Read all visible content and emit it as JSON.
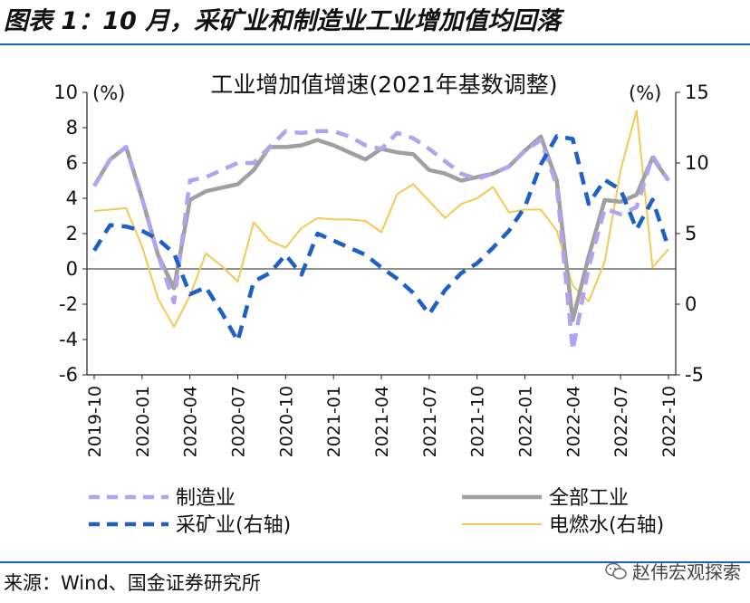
{
  "figure": {
    "title": "图表 1：10 月，采矿业和制造业工业增加值均回落",
    "source": "来源：Wind、国金证券研究所",
    "watermark": "赵伟宏观探索",
    "watermark_icon": "wechat-icon"
  },
  "chart_data": {
    "type": "line",
    "title": "工业增加值增速(2021年基数调整)",
    "left_unit": "(%)",
    "right_unit": "(%)",
    "xlabel": "",
    "x": [
      "2019-10",
      "2019-11",
      "2019-12",
      "2020-01",
      "2020-02",
      "2020-03",
      "2020-04",
      "2020-05",
      "2020-06",
      "2020-07",
      "2020-08",
      "2020-09",
      "2020-10",
      "2020-11",
      "2020-12",
      "2021-01",
      "2021-02",
      "2021-03",
      "2021-04",
      "2021-05",
      "2021-06",
      "2021-07",
      "2021-08",
      "2021-09",
      "2021-10",
      "2021-11",
      "2021-12",
      "2022-01",
      "2022-02",
      "2022-03",
      "2022-04",
      "2022-05",
      "2022-06",
      "2022-07",
      "2022-08",
      "2022-09",
      "2022-10"
    ],
    "x_tick_labels": [
      "2019-10",
      "2020-01",
      "2020-04",
      "2020-07",
      "2020-10",
      "2021-01",
      "2021-04",
      "2021-07",
      "2021-10",
      "2022-01",
      "2022-04",
      "2022-07",
      "2022-10"
    ],
    "left_axis": {
      "ylim": [
        -6,
        10
      ],
      "ticks": [
        10,
        8,
        6,
        4,
        2,
        0,
        -2,
        -4,
        -6
      ]
    },
    "right_axis": {
      "ylim": [
        -5,
        15
      ],
      "ticks": [
        15,
        10,
        5,
        0,
        -5
      ]
    },
    "grid": false,
    "series": [
      {
        "name": "制造业",
        "axis": "left",
        "color": "#b3a2f0",
        "style": "dashed-thick",
        "values": [
          4.7,
          6.2,
          6.9,
          4.0,
          0.8,
          -1.9,
          5.0,
          5.2,
          5.6,
          6.0,
          6.0,
          6.9,
          7.8,
          7.7,
          7.8,
          7.8,
          7.5,
          7.0,
          6.8,
          7.7,
          7.4,
          6.8,
          6.1,
          5.4,
          5.1,
          5.4,
          5.8,
          6.7,
          7.3,
          4.7,
          -4.6,
          0.1,
          3.4,
          3.1,
          3.5,
          6.4,
          5.0
        ]
      },
      {
        "name": "全部工业",
        "axis": "left",
        "color": "#a0a0a0",
        "style": "solid-thick",
        "values": [
          4.7,
          6.2,
          6.9,
          4.0,
          0.8,
          -1.1,
          3.9,
          4.4,
          4.6,
          4.8,
          5.6,
          6.9,
          6.9,
          7.0,
          7.3,
          7.0,
          6.6,
          6.2,
          6.8,
          6.6,
          6.5,
          5.6,
          5.4,
          5.0,
          5.2,
          5.4,
          5.8,
          6.7,
          7.5,
          5.0,
          -2.9,
          0.7,
          3.9,
          3.8,
          4.2,
          6.3,
          5.0
        ]
      },
      {
        "name": "采矿业(右轴)",
        "axis": "right",
        "color": "#1f5fc8",
        "style": "dashed-thick",
        "values": [
          3.8,
          5.6,
          5.5,
          5.2,
          4.6,
          3.6,
          0.7,
          1.2,
          -0.6,
          -2.6,
          1.6,
          2.2,
          3.5,
          2.1,
          5.0,
          4.5,
          4.0,
          3.5,
          2.6,
          1.8,
          0.8,
          -0.7,
          1.0,
          2.2,
          2.9,
          4.0,
          5.2,
          6.9,
          9.9,
          11.9,
          11.7,
          7.1,
          8.8,
          8.1,
          5.3,
          7.4,
          4.0
        ]
      },
      {
        "name": "电燃水(右轴)",
        "axis": "right",
        "color": "#f3c954",
        "style": "solid-thin",
        "values": [
          6.6,
          6.7,
          6.8,
          4.1,
          0.4,
          -1.6,
          0.6,
          3.6,
          2.7,
          1.6,
          5.8,
          4.5,
          4.0,
          5.4,
          6.1,
          6.0,
          6.0,
          5.9,
          5.1,
          7.8,
          8.5,
          7.3,
          6.1,
          7.1,
          7.5,
          8.3,
          6.5,
          6.7,
          6.7,
          5.2,
          1.3,
          0.2,
          3.0,
          9.5,
          13.7,
          2.6,
          3.9
        ]
      }
    ]
  }
}
